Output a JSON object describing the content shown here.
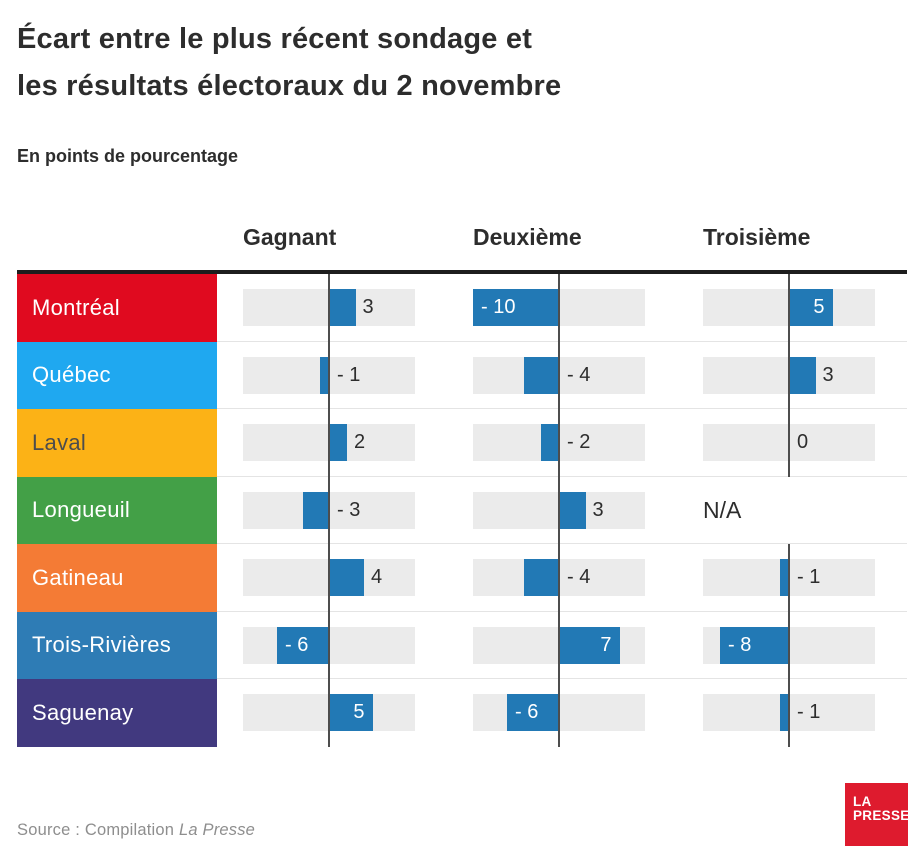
{
  "title": "Écart entre le plus récent sondage et\nles résultats électoraux du 2 novembre",
  "subtitle": "En points de pourcentage",
  "columns": [
    "Gagnant",
    "Deuxième",
    "Troisième"
  ],
  "source": {
    "prefix": "Source : Compilation ",
    "publication": "La Presse"
  },
  "logo": {
    "line1": "LA",
    "line2": "PRESSE"
  },
  "colors": {
    "bar_blue": "#2279b5",
    "track_gray": "#ebebeb",
    "axis_gray": "#4d4d4d",
    "rule_black": "#1d1d1d",
    "logo_red": "#de1b2e",
    "text_dark": "#2d2d2d",
    "source_gray": "#8e8e8e"
  },
  "chart_data": {
    "type": "bar",
    "orientation": "horizontal-diverging",
    "title": "Écart entre le plus récent sondage et les résultats électoraux du 2 novembre",
    "subtitle": "En points de pourcentage",
    "unit": "points de pourcentage",
    "categories": [
      "Montréal",
      "Québec",
      "Laval",
      "Longueuil",
      "Gatineau",
      "Trois-Rivières",
      "Saguenay"
    ],
    "row_colors": [
      "#e00a1f",
      "#1fa8f0",
      "#fcb216",
      "#43a047",
      "#f47b35",
      "#2e7cb5",
      "#41397f"
    ],
    "row_text_colors": [
      "#ffffff",
      "#ffffff",
      "#4d4d4d",
      "#ffffff",
      "#ffffff",
      "#ffffff",
      "#ffffff"
    ],
    "series": [
      {
        "name": "Gagnant",
        "values": [
          3,
          -1,
          2,
          -3,
          4,
          -6,
          5
        ]
      },
      {
        "name": "Deuxième",
        "values": [
          -10,
          -4,
          -2,
          3,
          -4,
          7,
          -6
        ]
      },
      {
        "name": "Troisième",
        "values": [
          5,
          3,
          0,
          null,
          -1,
          -8,
          -1
        ]
      }
    ],
    "na_label": "N/A",
    "xlim": [
      -10,
      10
    ],
    "inside_label_threshold": 5,
    "legend": "none",
    "grid": "off"
  }
}
